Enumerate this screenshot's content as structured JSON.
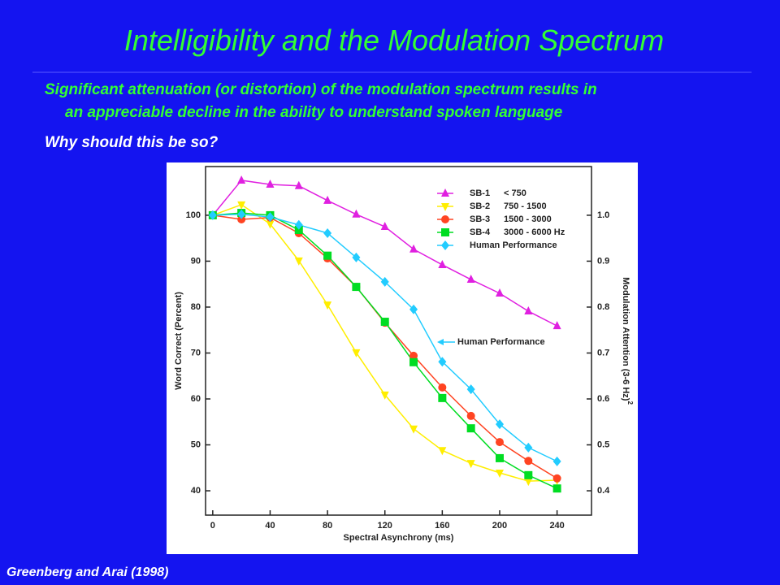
{
  "slide": {
    "title": "Intelligibility and the Modulation Spectrum",
    "bullet_1_line_1": "Significant attenuation (or distortion) of the modulation spectrum results in",
    "bullet_1_line_2": "an appreciable decline in the ability to understand spoken language",
    "bullet_2": "Why should this be so?",
    "citation": "Greenberg and Arai (1998)"
  },
  "chart_data": {
    "type": "line",
    "x_label": "Spectral Asynchrony (ms)",
    "y_label": "Word Correct (Percent)",
    "y2_label": "Modulation Attention (3-6 Hz)",
    "y2_label_sup": "2",
    "annotation": "Human Performance",
    "x": [
      0,
      20,
      40,
      60,
      80,
      100,
      120,
      140,
      160,
      180,
      200,
      220,
      240
    ],
    "series": [
      {
        "name": "SB-1",
        "band": "<  750",
        "color": "#e020e0",
        "marker": "triangle-up",
        "values": [
          100,
          107.6,
          106.7,
          106.4,
          103.2,
          100.2,
          97.5,
          92.6,
          89.2,
          86.0,
          83.0,
          79.1,
          75.9
        ]
      },
      {
        "name": "SB-2",
        "band": "750 - 1500",
        "color": "#ffee00",
        "marker": "triangle-down",
        "values": [
          100,
          102.3,
          98.1,
          90.1,
          80.5,
          70.1,
          60.9,
          53.5,
          48.8,
          46.0,
          43.9,
          42.1,
          42.3
        ]
      },
      {
        "name": "SB-3",
        "band": "1500 - 3000",
        "color": "#ff4422",
        "marker": "circle",
        "values": [
          100,
          99.1,
          99.5,
          96.1,
          90.6,
          84.4,
          76.6,
          69.4,
          62.5,
          56.3,
          50.6,
          46.5,
          42.7
        ]
      },
      {
        "name": "SB-4",
        "band": "3000 - 6000 Hz",
        "color": "#00dd22",
        "marker": "square",
        "values": [
          100,
          100.5,
          100,
          96.8,
          91.2,
          84.4,
          76.8,
          68.0,
          60.2,
          53.6,
          47.1,
          43.4,
          40.5
        ]
      },
      {
        "name": "Human Performance",
        "color": "#22ccff",
        "marker": "diamond",
        "values": [
          100,
          100.2,
          99.6,
          97.9,
          96.1,
          90.8,
          85.5,
          79.5,
          68.1,
          62.1,
          54.5,
          49.4,
          46.4
        ]
      }
    ],
    "xlim": [
      -5,
      264
    ],
    "xticks": [
      0,
      40,
      80,
      120,
      160,
      200,
      240
    ],
    "ylim": [
      34.7,
      110.6
    ],
    "yticks": [
      40,
      50,
      60,
      70,
      80,
      90,
      100
    ],
    "y2lim": [
      0.347,
      1.106
    ],
    "y2ticks": [
      0.4,
      0.5,
      0.6,
      0.7,
      0.8,
      0.9,
      {
        "value": 1,
        "label": "1.0"
      }
    ],
    "legend": "upper right"
  }
}
